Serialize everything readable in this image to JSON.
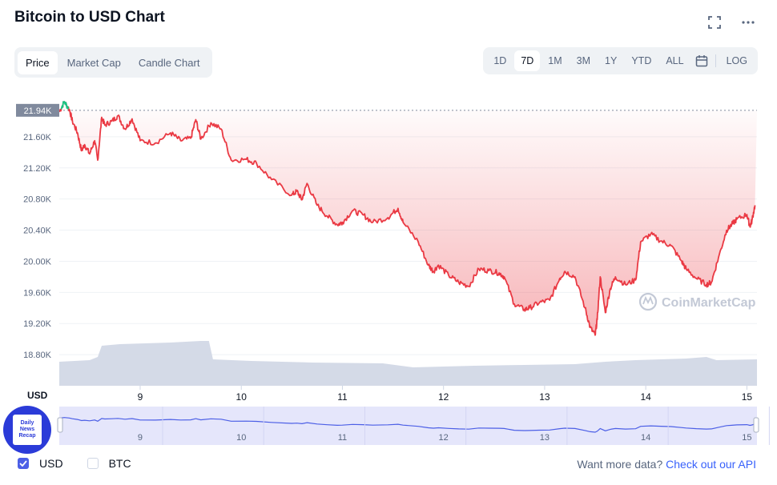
{
  "header": {
    "title": "Bitcoin to USD Chart",
    "fullscreen_icon": "expand-icon",
    "more_icon": "more-dots-icon"
  },
  "tabs": [
    {
      "label": "Price",
      "active": true
    },
    {
      "label": "Market Cap",
      "active": false
    },
    {
      "label": "Candle Chart",
      "active": false
    }
  ],
  "ranges": [
    {
      "label": "1D",
      "active": false
    },
    {
      "label": "7D",
      "active": true
    },
    {
      "label": "1M",
      "active": false
    },
    {
      "label": "3M",
      "active": false
    },
    {
      "label": "1Y",
      "active": false
    },
    {
      "label": "YTD",
      "active": false
    },
    {
      "label": "ALL",
      "active": false
    }
  ],
  "log_label": "LOG",
  "calendar_icon": "calendar-icon",
  "colors": {
    "down": "#ea3943",
    "up": "#16c784",
    "volume": "#cfd6e4",
    "navigator_fill": "#e5e6fb",
    "navigator_line": "#4c5fe6",
    "link": "#3861fb"
  },
  "chart_data": {
    "type": "line",
    "ylabel": "USD",
    "current_price_label": "21.94K",
    "open_price": 21940,
    "y_ticks": [
      "21.60K",
      "21.20K",
      "20.80K",
      "20.40K",
      "20.00K",
      "19.60K",
      "19.20K",
      "18.80K"
    ],
    "y_tick_values": [
      21600,
      21200,
      20800,
      20400,
      20000,
      19600,
      19200,
      18800
    ],
    "ylim": [
      18400,
      22000
    ],
    "x_ticks": [
      "9",
      "10",
      "11",
      "12",
      "13",
      "14",
      "15"
    ],
    "x_tick_values": [
      9,
      10,
      11,
      12,
      13,
      14,
      15
    ],
    "xlim": [
      8.2,
      15.1
    ],
    "grid": true,
    "watermark": "CoinMarketCap",
    "series": [
      {
        "x": [
          8.2,
          8.25,
          8.3,
          8.33,
          8.38,
          8.42,
          8.45,
          8.5,
          8.55,
          8.58,
          8.62,
          8.65,
          8.72,
          8.78,
          8.85,
          8.92,
          9.0,
          9.15,
          9.3,
          9.4,
          9.5,
          9.55,
          9.6,
          9.7,
          9.8,
          9.9,
          10.05,
          10.15,
          10.3,
          10.5,
          10.55,
          10.6,
          10.65,
          10.75,
          10.85,
          10.95,
          11.0,
          11.1,
          11.2,
          11.3,
          11.45,
          11.55,
          11.6,
          11.75,
          11.85,
          11.9,
          11.95,
          12.05,
          12.15,
          12.25,
          12.35,
          12.45,
          12.55,
          12.6,
          12.7,
          12.8,
          12.85,
          12.95,
          13.05,
          13.15,
          13.2,
          13.3,
          13.4,
          13.45,
          13.5,
          13.52,
          13.55,
          13.6,
          13.65,
          13.7,
          13.8,
          13.9,
          13.95,
          14.05,
          14.15,
          14.25,
          14.35,
          14.4,
          14.5,
          14.6,
          14.65,
          14.72,
          14.8,
          14.85,
          14.9,
          15.0,
          15.03,
          15.05,
          15.08
        ],
        "y": [
          21920,
          22050,
          21950,
          21800,
          21650,
          21420,
          21500,
          21380,
          21550,
          21300,
          21850,
          21750,
          21800,
          21870,
          21700,
          21830,
          21550,
          21520,
          21650,
          21550,
          21580,
          21820,
          21570,
          21780,
          21700,
          21300,
          21310,
          21260,
          21050,
          20850,
          20900,
          20790,
          21000,
          20720,
          20580,
          20470,
          20500,
          20650,
          20600,
          20500,
          20560,
          20680,
          20500,
          20250,
          19950,
          19870,
          19950,
          19820,
          19730,
          19680,
          19900,
          19880,
          19850,
          19800,
          19450,
          19380,
          19400,
          19470,
          19500,
          19780,
          19870,
          19800,
          19400,
          19150,
          19050,
          19250,
          19800,
          19340,
          19650,
          19800,
          19700,
          19760,
          20250,
          20350,
          20260,
          20200,
          20010,
          19900,
          19780,
          19700,
          19730,
          20050,
          20400,
          20470,
          20540,
          20600,
          20450,
          20520,
          20720
        ]
      }
    ],
    "navigator_x_ticks": [
      "9",
      "10",
      "11",
      "12",
      "13",
      "14",
      "15"
    ]
  },
  "badge": {
    "line1": "Daily",
    "line2": "News",
    "line3": "Recap"
  },
  "legend": [
    {
      "label": "USD",
      "checked": true
    },
    {
      "label": "BTC",
      "checked": false
    }
  ],
  "api": {
    "text": "Want more data?",
    "link": "Check out our API"
  }
}
